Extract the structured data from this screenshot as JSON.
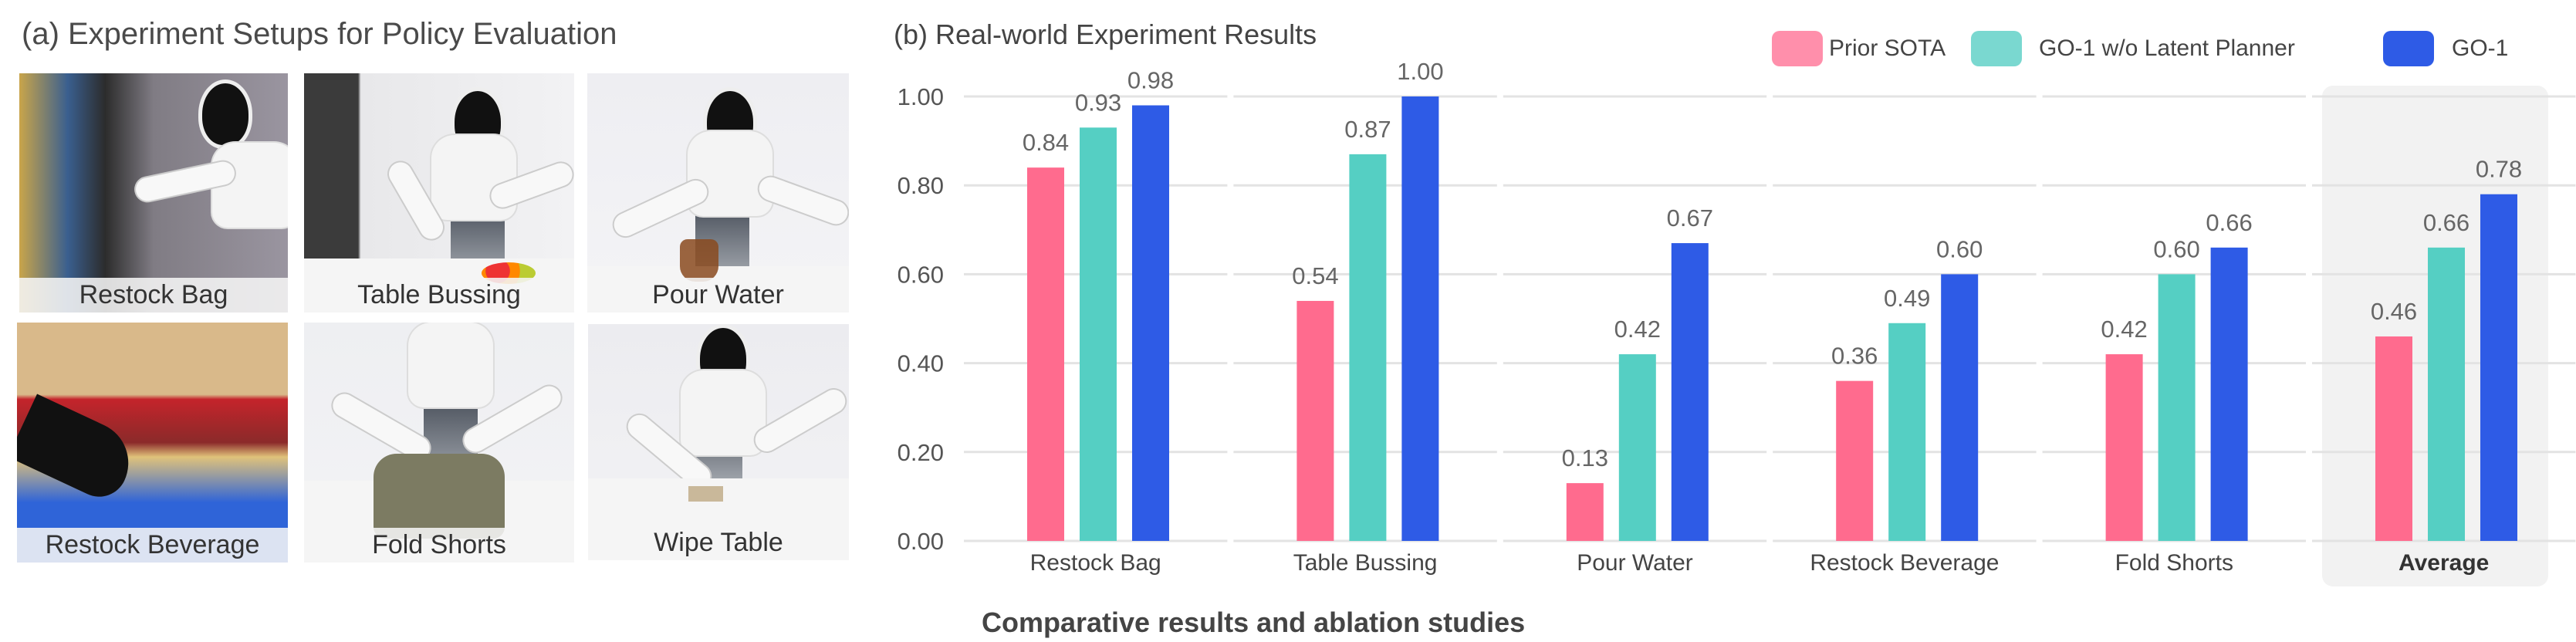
{
  "left_panel": {
    "title": "(a) Experiment Setups for Policy Evaluation",
    "photos": [
      {
        "label": "Restock Bag"
      },
      {
        "label": "Table Bussing"
      },
      {
        "label": "Pour Water"
      },
      {
        "label": "Restock Beverage"
      },
      {
        "label": "Fold Shorts"
      },
      {
        "label": "Wipe Table"
      }
    ]
  },
  "caption": "Comparative results and ablation studies",
  "colors": {
    "prior_sota": "#ff6b8e",
    "go1_no_planner": "#55cfc3",
    "go1": "#2e5be6",
    "highlight": "#f2f2f2"
  },
  "chart_data": {
    "type": "bar",
    "title": "(b) Real-world Experiment Results",
    "categories": [
      "Restock Bag",
      "Table Bussing",
      "Pour Water",
      "Restock Beverage",
      "Fold Shorts",
      "Average"
    ],
    "highlighted_category": "Average",
    "series": [
      {
        "name": "Prior SOTA",
        "values": [
          0.84,
          0.54,
          0.13,
          0.36,
          0.42,
          0.46
        ]
      },
      {
        "name": "GO-1 w/o Latent Planner",
        "values": [
          0.93,
          0.87,
          0.42,
          0.49,
          0.6,
          0.66
        ]
      },
      {
        "name": "GO-1",
        "values": [
          0.98,
          1.0,
          0.67,
          0.6,
          0.66,
          0.78
        ]
      }
    ],
    "yticks": [
      "0.00",
      "0.20",
      "0.40",
      "0.60",
      "0.80",
      "1.00"
    ],
    "ylim": [
      0,
      1
    ],
    "xlabel": "",
    "ylabel": "",
    "grid": true,
    "legend_position": "top-right"
  }
}
